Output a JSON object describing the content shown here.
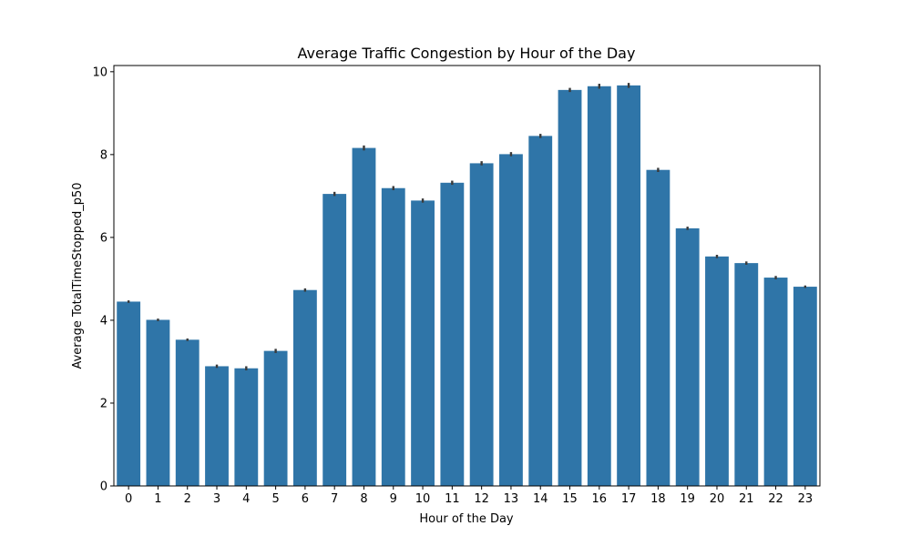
{
  "chart_data": {
    "type": "bar",
    "title": "Average Traffic Congestion by Hour of the Day",
    "xlabel": "Hour of the Day",
    "ylabel": "Average TotalTimeStopped_p50",
    "categories": [
      "0",
      "1",
      "2",
      "3",
      "4",
      "5",
      "6",
      "7",
      "8",
      "9",
      "10",
      "11",
      "12",
      "13",
      "14",
      "15",
      "16",
      "17",
      "18",
      "19",
      "20",
      "21",
      "22",
      "23"
    ],
    "values": [
      4.45,
      4.01,
      3.53,
      2.89,
      2.84,
      3.26,
      4.73,
      7.05,
      8.16,
      7.19,
      6.89,
      7.32,
      7.79,
      8.01,
      8.45,
      9.56,
      9.65,
      9.67,
      7.63,
      6.22,
      5.54,
      5.38,
      5.03,
      4.81
    ],
    "errors": [
      0.03,
      0.03,
      0.03,
      0.04,
      0.05,
      0.05,
      0.04,
      0.05,
      0.06,
      0.05,
      0.05,
      0.05,
      0.05,
      0.05,
      0.05,
      0.05,
      0.06,
      0.06,
      0.05,
      0.04,
      0.04,
      0.04,
      0.04,
      0.03
    ],
    "ylim": [
      0,
      10.15
    ],
    "yticks": [
      0,
      2,
      4,
      6,
      8,
      10
    ],
    "bar_color": "#2f75a8",
    "error_color": "#3a3a3a",
    "grid": false
  }
}
